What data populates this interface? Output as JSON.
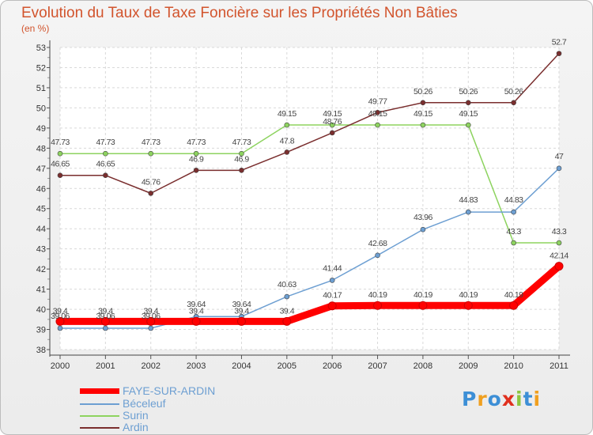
{
  "chart_data": {
    "type": "line",
    "title": "Evolution du Taux de Taxe Foncière sur les Propriétés Non Bâties",
    "subtitle": "(en %)",
    "x": [
      "2000",
      "2001",
      "2002",
      "2003",
      "2004",
      "2005",
      "2006",
      "2007",
      "2008",
      "2009",
      "2010",
      "2011"
    ],
    "ylim": [
      38,
      53
    ],
    "yticks": [
      "38",
      "39",
      "40",
      "41",
      "42",
      "43",
      "44",
      "45",
      "46",
      "47",
      "48",
      "49",
      "50",
      "51",
      "52",
      "53"
    ],
    "grid": true,
    "legend_position": "bottom-left",
    "series": [
      {
        "name": "FAYE-SUR-ARDIN",
        "color": "#ff0000",
        "values": [
          39.4,
          39.4,
          39.4,
          39.4,
          39.4,
          39.4,
          40.17,
          40.19,
          40.19,
          40.19,
          40.19,
          42.14
        ],
        "labels": [
          "39.4",
          "39.4",
          "39.4",
          "39.4",
          "39.4",
          "39.4",
          "40.17",
          "40.19",
          "40.19",
          "40.19",
          "40.19",
          "42.14"
        ]
      },
      {
        "name": "Béceleuf",
        "color": "#6d9fd2",
        "values": [
          39.06,
          39.06,
          39.06,
          39.64,
          39.64,
          40.63,
          41.44,
          42.68,
          43.96,
          44.83,
          44.83,
          47
        ],
        "labels": [
          "39.06",
          "39.06",
          "39.06",
          "39.64",
          "39.64",
          "40.63",
          "41.44",
          "42.68",
          "43.96",
          "44.83",
          "44.83",
          "47"
        ]
      },
      {
        "name": "Surin",
        "color": "#8dd35f",
        "values": [
          47.73,
          47.73,
          47.73,
          47.73,
          47.73,
          49.15,
          49.15,
          49.15,
          49.15,
          49.15,
          43.3,
          43.3
        ],
        "labels": [
          "47.73",
          "47.73",
          "47.73",
          "47.73",
          "47.73",
          "49.15",
          "49.15",
          "49.15",
          "49.15",
          "49.15",
          "43.3",
          "43.3"
        ]
      },
      {
        "name": "Ardin",
        "color": "#7a2e2e",
        "values": [
          46.65,
          46.65,
          45.76,
          46.9,
          46.9,
          47.8,
          48.76,
          49.77,
          50.26,
          50.26,
          50.26,
          52.7
        ],
        "labels": [
          "46.65",
          "46.65",
          "45.76",
          "46.9",
          "46.9",
          "47.8",
          "48.76",
          "49.77",
          "50.26",
          "50.26",
          "50.26",
          "52.7"
        ]
      }
    ]
  },
  "legend": {
    "faye": "FAYE-SUR-ARDIN",
    "beceleuf": "Béceleuf",
    "surin": "Surin",
    "ardin": "Ardin"
  },
  "logo": {
    "text": "Proxiti"
  }
}
